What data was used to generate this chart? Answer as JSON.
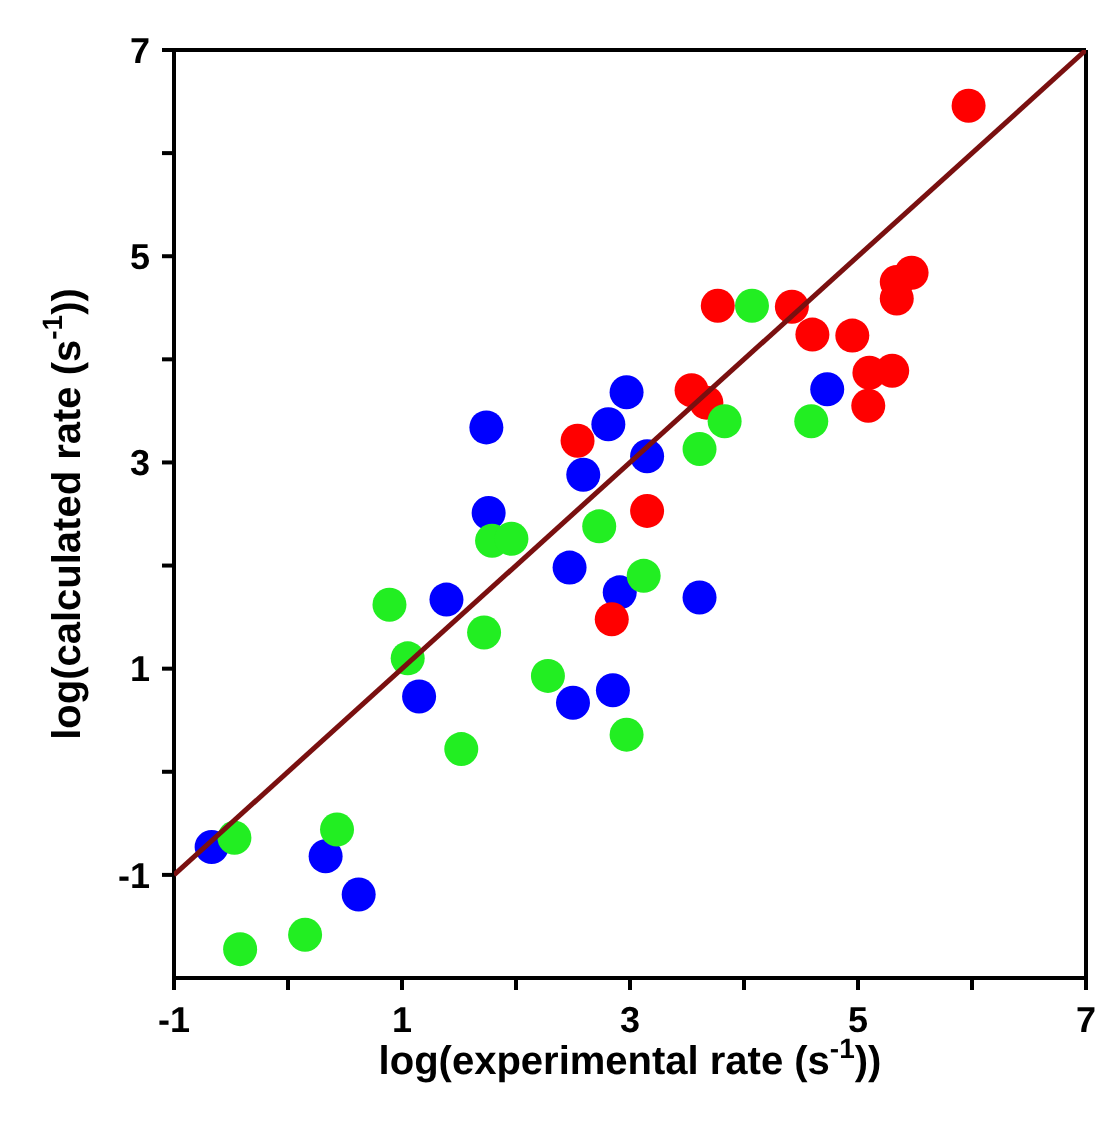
{
  "chart_data": {
    "type": "scatter",
    "xlabel": "log(experimental rate (s$^{-1}$))",
    "ylabel": "log(calculated rate (s$^{-1}$))",
    "xlim": [
      -1,
      7
    ],
    "ylim": [
      -2,
      7
    ],
    "xticks": [
      -1,
      {
        "value": 0,
        "label": null
      },
      1,
      {
        "value": 2,
        "label": null
      },
      3,
      {
        "value": 4,
        "label": null
      },
      5,
      {
        "value": 6,
        "label": null
      },
      7
    ],
    "yticks": [
      -1,
      {
        "value": 0,
        "label": null
      },
      1,
      {
        "value": 2,
        "label": null
      },
      3,
      {
        "value": 4,
        "label": null
      },
      5,
      {
        "value": 6,
        "label": null
      },
      7
    ],
    "marker": "circle",
    "series": [
      {
        "color": "#0000ff",
        "x": [
          1.74,
          2.81,
          2.97,
          2.59,
          1.76,
          4.73,
          3.15,
          2.47,
          2.91,
          1.39,
          1.15,
          2.5,
          2.85,
          -0.67,
          0.33,
          0.62,
          3.61
        ],
        "values": [
          3.34,
          3.37,
          3.68,
          2.88,
          2.51,
          3.71,
          3.06,
          1.98,
          1.74,
          1.67,
          0.73,
          0.67,
          0.79,
          -0.73,
          -0.82,
          -1.19,
          1.69
        ]
      },
      {
        "color": "#ff0000",
        "x": [
          2.54,
          5.97,
          5.47,
          5.34,
          5.34,
          3.77,
          4.42,
          4.6,
          4.95,
          5.1,
          5.3,
          5.09,
          3.54,
          3.67,
          3.15,
          2.84
        ],
        "values": [
          3.21,
          6.46,
          4.84,
          4.75,
          4.59,
          4.52,
          4.51,
          4.24,
          4.23,
          3.87,
          3.89,
          3.55,
          3.7,
          3.58,
          2.53,
          1.48
        ]
      },
      {
        "color": "#22ee22",
        "x": [
          4.07,
          4.59,
          3.83,
          3.61,
          1.79,
          1.96,
          2.73,
          0.89,
          1.72,
          1.05,
          2.28,
          2.97,
          1.52,
          -0.47,
          0.43,
          -0.42,
          0.15,
          3.12
        ],
        "values": [
          4.52,
          3.4,
          3.4,
          3.13,
          2.24,
          2.26,
          2.38,
          1.62,
          1.35,
          1.1,
          0.93,
          0.36,
          0.22,
          -0.64,
          -0.56,
          -1.72,
          -1.58,
          1.9
        ]
      },
      {
        "type": "line",
        "color": "#7a1010",
        "marker": "none",
        "x": [
          -1,
          7
        ],
        "values": [
          -1,
          7
        ]
      }
    ]
  }
}
